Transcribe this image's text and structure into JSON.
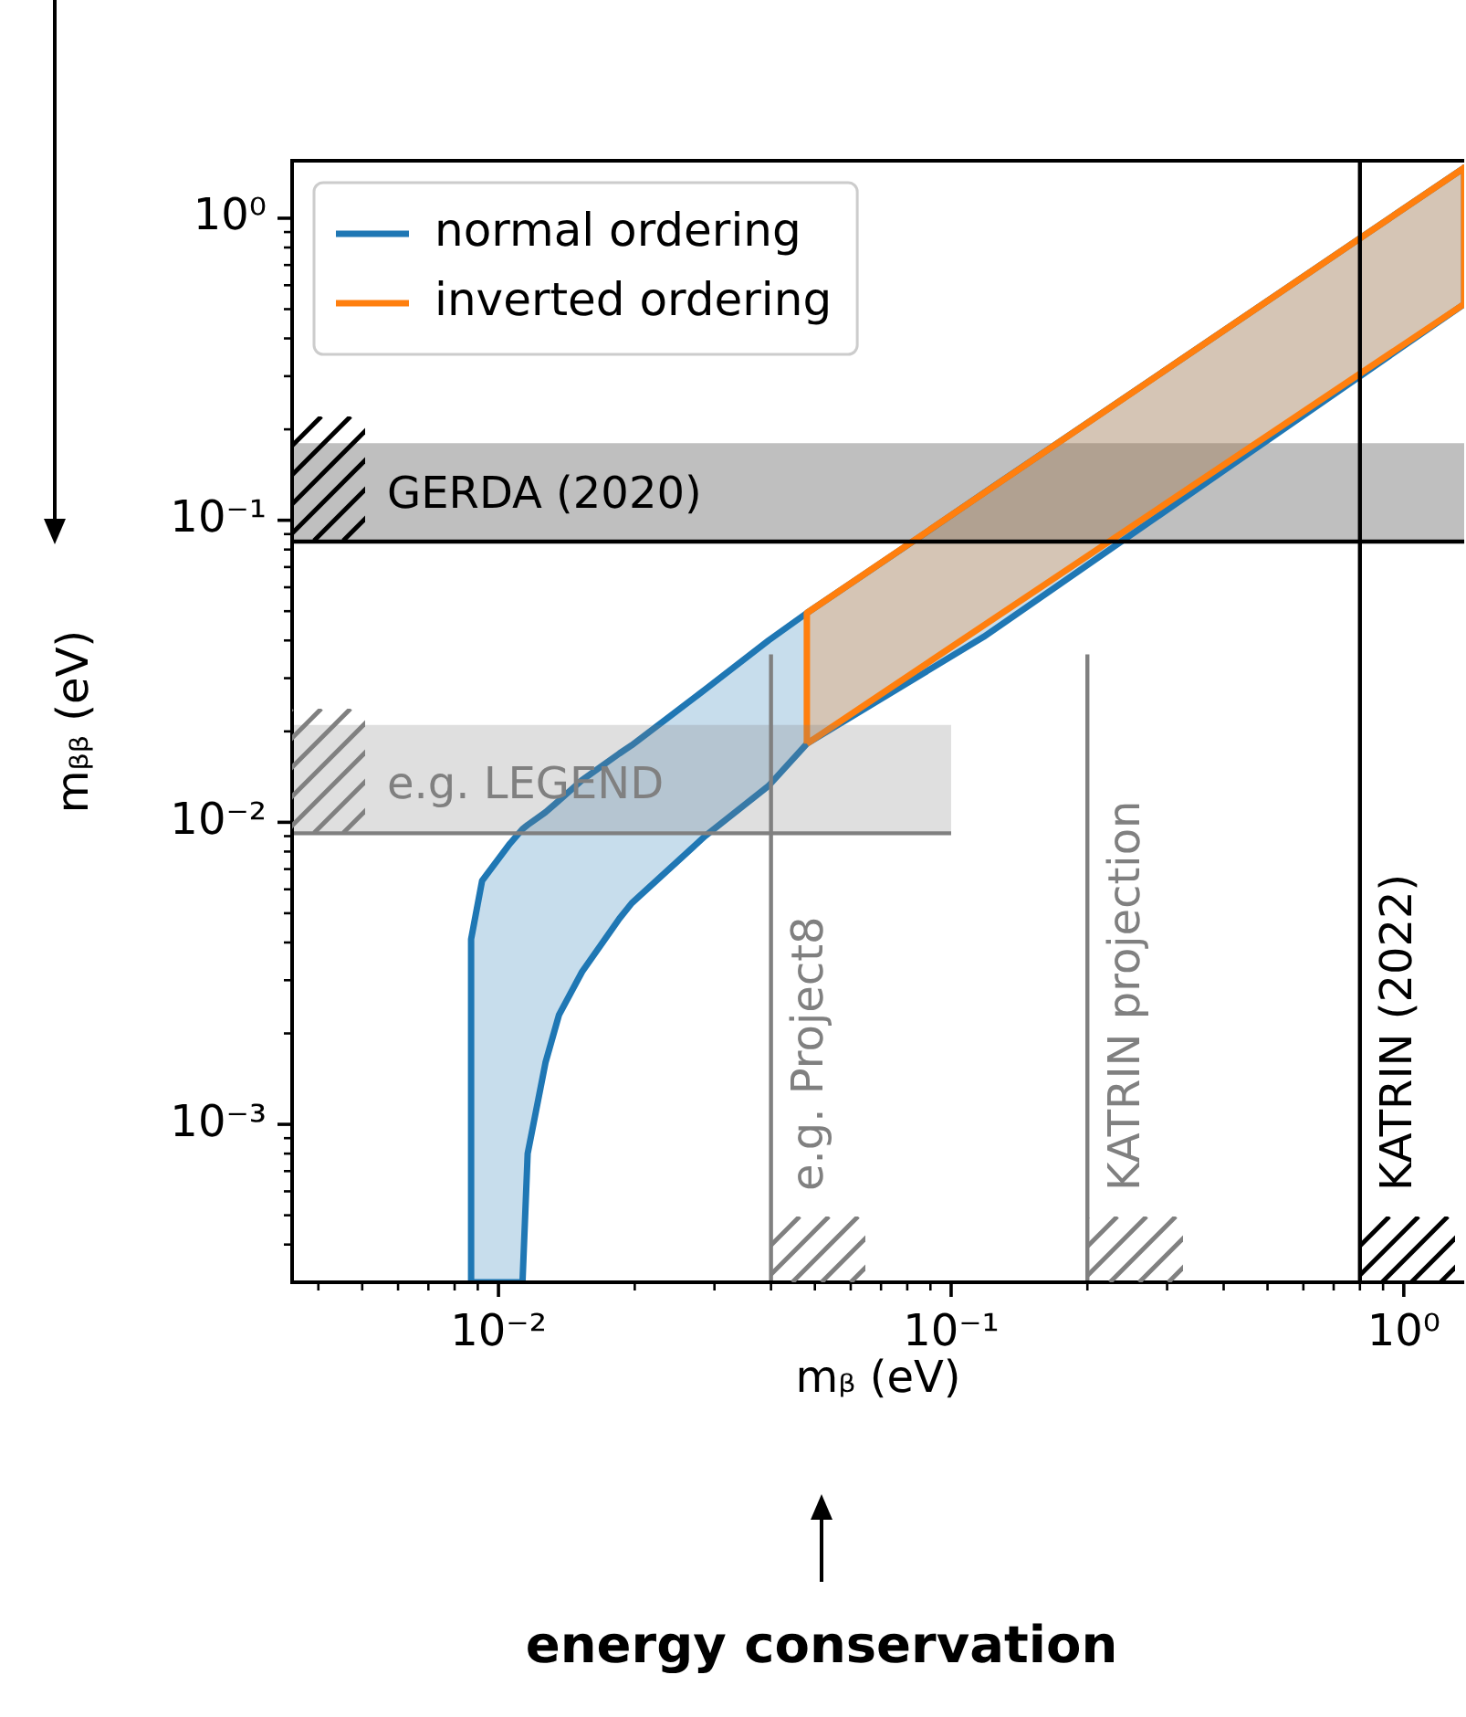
{
  "chart_data": {
    "type": "area",
    "xlabel": "mᵦ (eV)",
    "ylabel": "mᵦᵦ (eV)",
    "log": "xy",
    "legend": "top left",
    "xlim": [
      0.0035,
      1.36
    ],
    "ylim": [
      0.0003,
      1.55
    ],
    "xticks": [
      {
        "value": 0.004,
        "label": null
      },
      {
        "value": 0.005,
        "label": null
      },
      {
        "value": 0.006,
        "label": null
      },
      {
        "value": 0.007,
        "label": null
      },
      {
        "value": 0.008,
        "label": null
      },
      {
        "value": 0.009,
        "label": null
      },
      {
        "value": 0.01,
        "label": "10⁻²"
      },
      {
        "value": 0.02,
        "label": null
      },
      {
        "value": 0.03,
        "label": null
      },
      {
        "value": 0.04,
        "label": null
      },
      {
        "value": 0.05,
        "label": null
      },
      {
        "value": 0.06,
        "label": null
      },
      {
        "value": 0.07,
        "label": null
      },
      {
        "value": 0.08,
        "label": null
      },
      {
        "value": 0.09,
        "label": null
      },
      {
        "value": 0.1,
        "label": "10⁻¹"
      },
      {
        "value": 0.2,
        "label": null
      },
      {
        "value": 0.3,
        "label": null
      },
      {
        "value": 0.4,
        "label": null
      },
      {
        "value": 0.5,
        "label": null
      },
      {
        "value": 0.6,
        "label": null
      },
      {
        "value": 0.7,
        "label": null
      },
      {
        "value": 0.8,
        "label": null
      },
      {
        "value": 0.9,
        "label": null
      },
      {
        "value": 1,
        "label": "10⁰"
      }
    ],
    "yticks": [
      {
        "value": 0.0004,
        "label": null
      },
      {
        "value": 0.0005,
        "label": null
      },
      {
        "value": 0.0006,
        "label": null
      },
      {
        "value": 0.0007,
        "label": null
      },
      {
        "value": 0.0008,
        "label": null
      },
      {
        "value": 0.0009,
        "label": null
      },
      {
        "value": 0.001,
        "label": "10⁻³"
      },
      {
        "value": 0.002,
        "label": null
      },
      {
        "value": 0.003,
        "label": null
      },
      {
        "value": 0.004,
        "label": null
      },
      {
        "value": 0.005,
        "label": null
      },
      {
        "value": 0.006,
        "label": null
      },
      {
        "value": 0.007,
        "label": null
      },
      {
        "value": 0.008,
        "label": null
      },
      {
        "value": 0.009,
        "label": null
      },
      {
        "value": 0.01,
        "label": "10⁻²"
      },
      {
        "value": 0.02,
        "label": null
      },
      {
        "value": 0.03,
        "label": null
      },
      {
        "value": 0.04,
        "label": null
      },
      {
        "value": 0.05,
        "label": null
      },
      {
        "value": 0.06,
        "label": null
      },
      {
        "value": 0.07,
        "label": null
      },
      {
        "value": 0.08,
        "label": null
      },
      {
        "value": 0.09,
        "label": null
      },
      {
        "value": 0.1,
        "label": "10⁻¹"
      },
      {
        "value": 0.2,
        "label": null
      },
      {
        "value": 0.3,
        "label": null
      },
      {
        "value": 0.4,
        "label": null
      },
      {
        "value": 0.5,
        "label": null
      },
      {
        "value": 0.6,
        "label": null
      },
      {
        "value": 0.7,
        "label": null
      },
      {
        "value": 0.8,
        "label": null
      },
      {
        "value": 0.9,
        "label": null
      },
      {
        "value": 1,
        "label": "10⁰"
      }
    ],
    "series": [
      {
        "name": "normal ordering",
        "color": "#1f77b4",
        "line_style": "solid",
        "x": [
          0.0087,
          0.0092,
          0.0106,
          0.0113,
          0.0116,
          0.0127,
          0.0136,
          0.0153,
          0.0185,
          0.0197,
          0.0286,
          0.0395,
          0.048,
          0.087,
          0.118,
          1.36
        ],
        "values": [
          null,
          null,
          null,
          null,
          null,
          null,
          null,
          null,
          null,
          null,
          null,
          null,
          null,
          null,
          null,
          null
        ],
        "lower": [
          0.0003,
          0.0003,
          0.0003,
          0.0003,
          0.0008,
          0.0016,
          0.0023,
          0.0032,
          0.0048,
          0.0054,
          0.009,
          0.0132,
          0.0182,
          0.0312,
          0.0411,
          0.52
        ],
        "upper": [
          0.0041,
          0.0064,
          0.0085,
          0.0095,
          0.0098,
          0.0108,
          0.0118,
          0.0138,
          0.0169,
          0.018,
          0.0275,
          0.04,
          0.0493,
          0.09,
          0.123,
          1.47
        ]
      },
      {
        "name": "inverted ordering",
        "color": "#ff7f0e",
        "line_style": "solid",
        "x": [
          0.048,
          1.36
        ],
        "values": [
          null,
          null
        ],
        "lower": [
          0.0182,
          0.52
        ],
        "upper": [
          0.0493,
          1.47
        ]
      },
      {
        "name": "e.g. LEGEND",
        "color": "#808080",
        "x": [
          0.0035,
          0.1
        ],
        "values": [
          null,
          null
        ],
        "lower": [
          0.0092,
          0.0092
        ],
        "upper": [
          0.021,
          0.021
        ]
      },
      {
        "type": "line",
        "color": "#808080",
        "x": [
          0.0035,
          0.1
        ],
        "values": [
          0.0092,
          0.0092
        ]
      },
      {
        "name": "e.g. Project8",
        "type": "line",
        "color": "#808080",
        "x": [
          0.04,
          0.04
        ],
        "values": [
          0.0003,
          0.036
        ]
      },
      {
        "name": "KATRIN projection",
        "type": "line",
        "color": "#808080",
        "x": [
          0.2,
          0.2
        ],
        "values": [
          0.0003,
          0.036
        ]
      }
    ],
    "bands": [
      {
        "axis": "y",
        "from": 0.085,
        "to": 0.18,
        "label": "GERDA (2020)",
        "color": "#808080"
      }
    ],
    "ref_lines": [
      {
        "axis": "y",
        "value": 0.085,
        "color": "#000000"
      },
      {
        "axis": "x",
        "value": 0.8,
        "label": "KATRIN (2022)",
        "color": "#000000"
      }
    ],
    "annotations": [
      "energy conservation"
    ]
  }
}
